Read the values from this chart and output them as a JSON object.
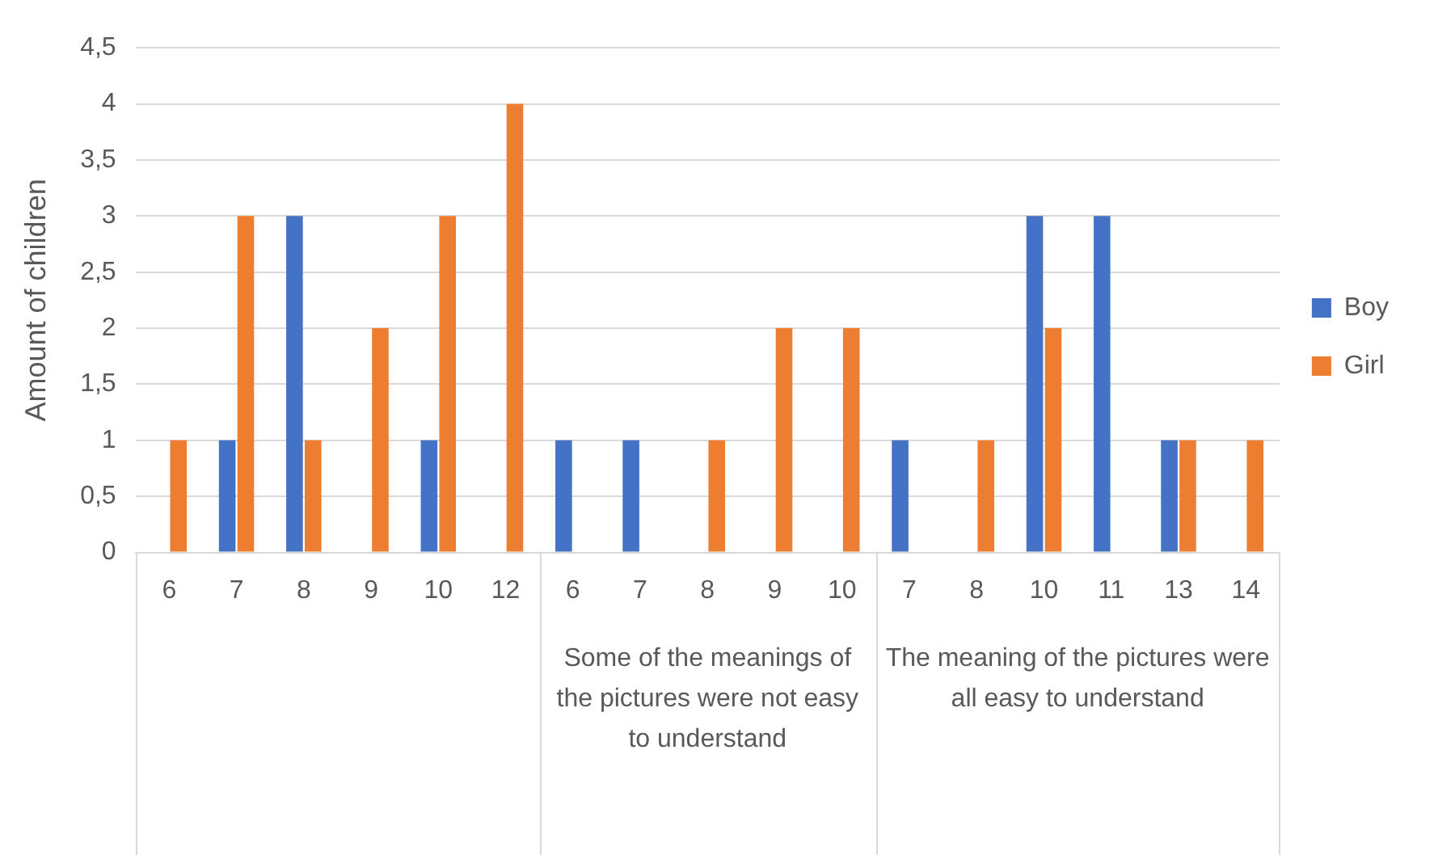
{
  "chart_data": {
    "type": "bar",
    "ylabel": "Amount of children",
    "categories": [
      "6",
      "7",
      "8",
      "9",
      "10",
      "12",
      "6",
      "7",
      "8",
      "9",
      "10",
      "7",
      "8",
      "10",
      "11",
      "13",
      "14"
    ],
    "series": [
      {
        "name": "Boy",
        "color": "#4472c4",
        "values": [
          null,
          1,
          3,
          null,
          1,
          null,
          1,
          1,
          null,
          null,
          null,
          1,
          null,
          3,
          3,
          1,
          null
        ]
      },
      {
        "name": "Girl",
        "color": "#ed7d31",
        "values": [
          1,
          3,
          1,
          2,
          3,
          4,
          null,
          null,
          1,
          2,
          2,
          null,
          1,
          2,
          null,
          1,
          1
        ]
      }
    ],
    "annotations": [
      "Some of the meanings of the pictures were not easy to understand",
      "The meaning of the pictures were all easy to understand"
    ],
    "ylim": [
      0,
      4.5
    ],
    "yticks": [
      0,
      {
        "value": 0.5,
        "label": "0,5"
      },
      1,
      {
        "value": 1.5,
        "label": "1,5"
      },
      2,
      {
        "value": 2.5,
        "label": "2,5"
      },
      3,
      {
        "value": 3.5,
        "label": "3,5"
      },
      4,
      {
        "value": 4.5,
        "label": "4,5"
      }
    ],
    "grid": "y",
    "legend": "right"
  }
}
